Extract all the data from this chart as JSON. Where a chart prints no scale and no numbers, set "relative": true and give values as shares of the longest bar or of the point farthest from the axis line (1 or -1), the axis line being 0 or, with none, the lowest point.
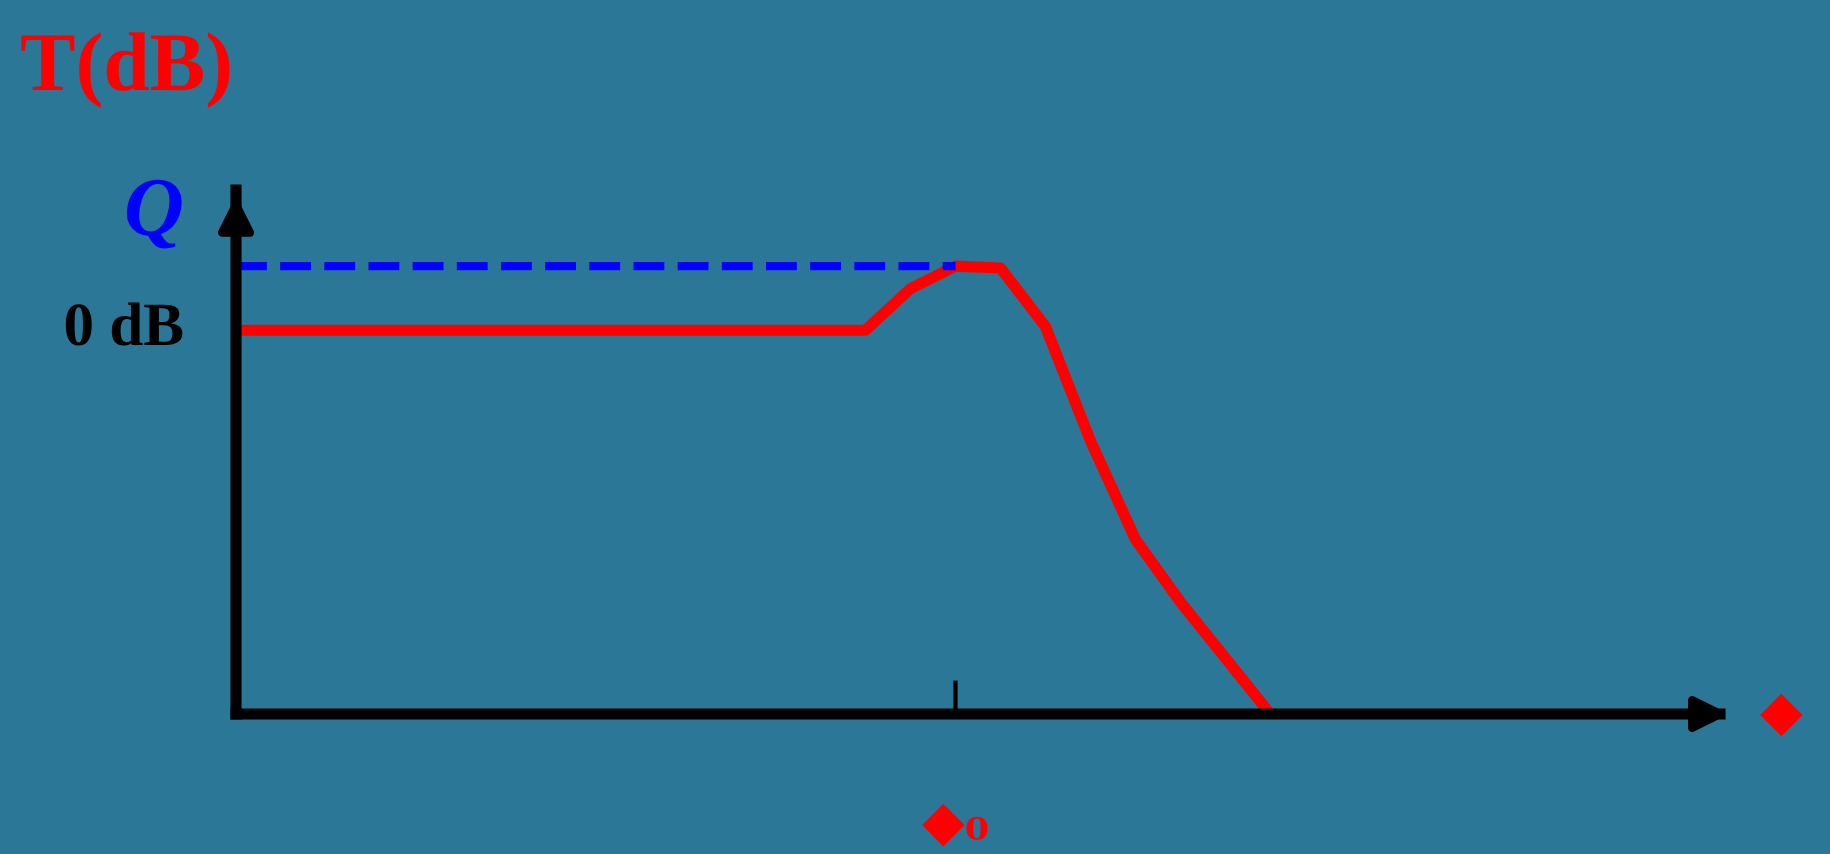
{
  "chart_data": {
    "type": "line",
    "relative": true,
    "ylabel": "T(dB)",
    "xlabel": "◆",
    "categories": [
      null,
      null,
      null,
      null,
      null,
      null,
      null,
      null,
      null,
      null,
      null,
      null,
      null,
      null,
      null,
      null,
      null,
      null,
      null,
      null,
      null,
      null,
      null,
      null,
      null,
      null,
      null,
      null,
      null,
      null,
      null,
      null,
      null,
      null
    ],
    "series": [
      {
        "color": "#ff0000",
        "values": [
          0.857,
          0.857,
          0.857,
          0.857,
          0.857,
          0.857,
          0.857,
          0.857,
          0.857,
          0.857,
          0.857,
          0.857,
          0.857,
          0.857,
          0.857,
          0.95,
          1,
          0.996,
          0.865,
          0.61,
          0.39,
          0.25,
          0.125,
          0,
          null,
          null,
          null,
          null,
          null,
          null,
          null,
          null,
          null,
          null
        ]
      }
    ],
    "ref_lines": [
      {
        "axis": "y",
        "value": 1,
        "label": "Q",
        "color": "#0000ff",
        "line_style": "dashed"
      }
    ],
    "annotations": [
      "0 dB",
      "◆₀"
    ],
    "marker": "none",
    "line_style": "solid"
  }
}
